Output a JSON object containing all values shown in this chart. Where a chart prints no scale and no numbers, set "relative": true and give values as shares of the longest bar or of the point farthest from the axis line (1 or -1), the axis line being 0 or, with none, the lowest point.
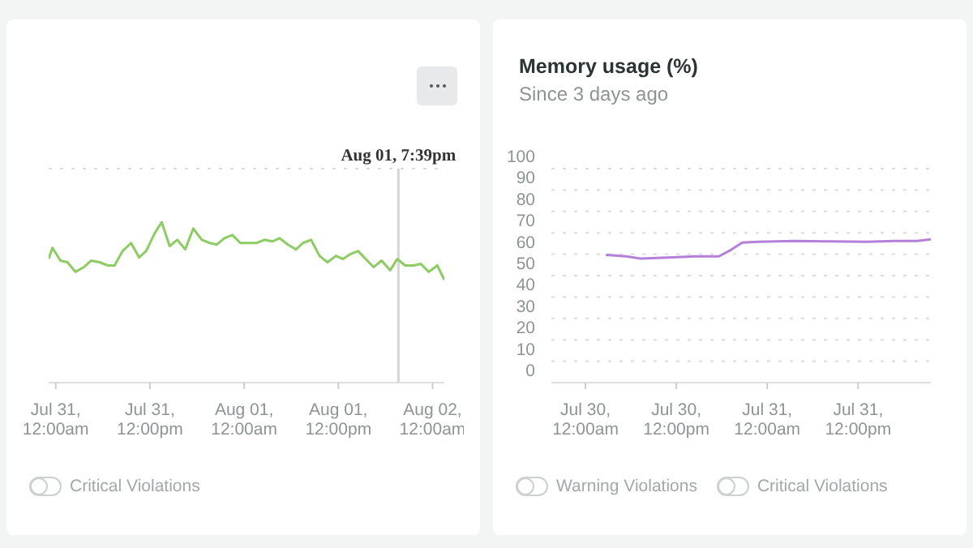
{
  "chart_data": [
    {
      "type": "line",
      "relative": true,
      "grid": "y",
      "legend": false,
      "tick_labels": "x",
      "marker": "none",
      "xlim": [
        "--07-30T23:06",
        "--08-02T01:30"
      ],
      "xticks": [
        {
          "value": "--07-31T00:00",
          "label": "Jul 31, 12:00am"
        },
        {
          "value": "--07-31T12:00",
          "label": "Jul 31, 12:00pm"
        },
        {
          "value": "--08-01T00:00",
          "label": "Aug 01, 12:00am"
        },
        {
          "value": "--08-01T12:00",
          "label": "Aug 01, 12:00pm"
        },
        {
          "value": "--08-02T00:00",
          "label": "Aug 02, 12:00am"
        }
      ],
      "ref_lines": [
        {
          "axis": "x",
          "value": "--08-01T19:39",
          "label": "Aug 01, 7:39pm",
          "color": "#d5d5d5"
        }
      ],
      "annotations": [
        "Critical Violations"
      ],
      "series": [
        {
          "color": "#8ccc63",
          "x": [
            "--07-30T23:06",
            "--07-30T23:35",
            "--07-31T00:36",
            "--07-31T01:30",
            "--07-31T02:31",
            "--07-31T03:36",
            "--07-31T04:30",
            "--07-31T05:35",
            "--07-31T06:36",
            "--07-31T07:30",
            "--07-31T08:31",
            "--07-31T09:36",
            "--07-31T10:37",
            "--07-31T11:31",
            "--07-31T12:36",
            "--07-31T13:30",
            "--07-31T14:31",
            "--07-31T15:29",
            "--07-31T16:30",
            "--07-31T17:31",
            "--07-31T18:36",
            "--07-31T19:37",
            "--07-31T20:31",
            "--07-31T21:29",
            "--07-31T22:30",
            "--07-31T23:31",
            "--08-01T00:36",
            "--08-01T01:37",
            "--08-01T02:35",
            "--08-01T03:36",
            "--08-01T04:30",
            "--08-01T05:35",
            "--08-01T06:36",
            "--08-01T07:30",
            "--08-01T08:31",
            "--08-01T09:36",
            "--08-01T10:37",
            "--08-01T11:42",
            "--08-01T12:36",
            "--08-01T13:30",
            "--08-01T14:31",
            "--08-01T15:29",
            "--08-01T16:30",
            "--08-01T17:31",
            "--08-01T18:36",
            "--08-01T19:30",
            "--08-01T20:31",
            "--08-01T21:36",
            "--08-01T22:30",
            "--08-01T23:31",
            "--08-02T00:36",
            "--08-02T01:30"
          ],
          "values": [
            0.77,
            0.84,
            0.76,
            0.75,
            0.69,
            0.72,
            0.76,
            0.75,
            0.73,
            0.73,
            0.82,
            0.87,
            0.78,
            0.82,
            0.93,
            1,
            0.85,
            0.89,
            0.83,
            0.96,
            0.89,
            0.87,
            0.86,
            0.9,
            0.92,
            0.87,
            0.87,
            0.87,
            0.89,
            0.88,
            0.9,
            0.86,
            0.83,
            0.87,
            0.89,
            0.79,
            0.75,
            0.79,
            0.77,
            0.8,
            0.82,
            0.77,
            0.72,
            0.76,
            0.7,
            0.77,
            0.73,
            0.73,
            0.74,
            0.69,
            0.73,
            0.64
          ]
        }
      ]
    },
    {
      "type": "line",
      "title": "Memory usage (%)",
      "subtitle": "Since 3 days ago",
      "grid": "y",
      "legend": false,
      "marker": "none",
      "ylim": [
        0,
        100
      ],
      "yticks": [
        0,
        10,
        20,
        30,
        40,
        50,
        60,
        70,
        80,
        90,
        100
      ],
      "xlim": [
        "--07-29T19:30",
        "--07-31T21:36"
      ],
      "xticks": [
        {
          "value": "--07-30T00:00",
          "label": "Jul 30, 12:00am"
        },
        {
          "value": "--07-30T12:00",
          "label": "Jul 30, 12:00pm"
        },
        {
          "value": "--07-31T00:00",
          "label": "Jul 31, 12:00am"
        },
        {
          "value": "--07-31T12:00",
          "label": "Jul 31, 12:00pm"
        }
      ],
      "annotations": [
        "Warning Violations",
        "Critical Violations"
      ],
      "series": [
        {
          "color": "#b37fd9",
          "x": [
            "--07-30T02:42",
            "--07-30T05:24",
            "--07-30T07:12",
            "--07-30T10:48",
            "--07-30T14:24",
            "--07-30T17:36",
            "--07-30T19:12",
            "--07-30T20:42",
            "--07-30T22:48",
            "--07-31T03:36",
            "--07-31T08:24",
            "--07-31T13:12",
            "--07-31T16:48",
            "--07-31T19:48",
            "--07-31T21:36"
          ],
          "values": [
            59.7,
            59,
            58,
            58.4,
            59,
            59,
            62,
            65.4,
            65.8,
            66.2,
            66,
            65.8,
            66.2,
            66.2,
            67
          ]
        }
      ]
    }
  ]
}
